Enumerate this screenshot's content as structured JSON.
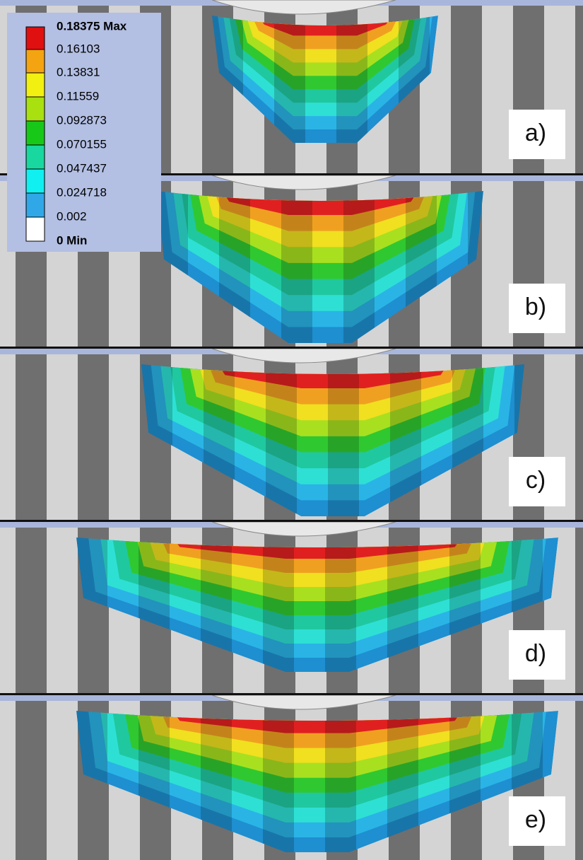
{
  "legend": {
    "labels": [
      "0.18375 Max",
      "0.16103",
      "0.13831",
      "0.11559",
      "0.092873",
      "0.070155",
      "0.047437",
      "0.024718",
      "0.002",
      "0 Min"
    ],
    "colors": [
      "#e01010",
      "#f4a410",
      "#f2f010",
      "#a8e010",
      "#18c818",
      "#18d8a0",
      "#10f0f0",
      "#30a8e8",
      "#ffffff"
    ]
  },
  "panels": [
    {
      "label": "a)"
    },
    {
      "label": "b)"
    },
    {
      "label": "c)"
    },
    {
      "label": "d)"
    },
    {
      "label": "e)"
    }
  ]
}
